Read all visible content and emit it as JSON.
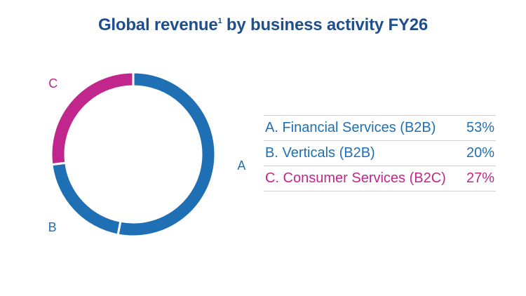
{
  "title": {
    "text": "Global revenue",
    "sup": "1",
    "suffix": " by business activity FY26"
  },
  "colors": {
    "blue": "#1f6fb4",
    "magenta": "#c0268c",
    "title": "#1f4e8c"
  },
  "chart_data": {
    "type": "pie",
    "donut": true,
    "title": "Global revenue¹ by business activity FY26",
    "slices": [
      {
        "key": "A",
        "label": "A. Financial Services (B2B)",
        "value": 53,
        "pct": "53%",
        "color": "#1f6fb4"
      },
      {
        "key": "B",
        "label": "B. Verticals (B2B)",
        "value": 20,
        "pct": "20%",
        "color": "#1f6fb4"
      },
      {
        "key": "C",
        "label": "C. Consumer Services (B2C)",
        "value": 27,
        "pct": "27%",
        "color": "#c0268c"
      }
    ],
    "legend_position": "right"
  }
}
